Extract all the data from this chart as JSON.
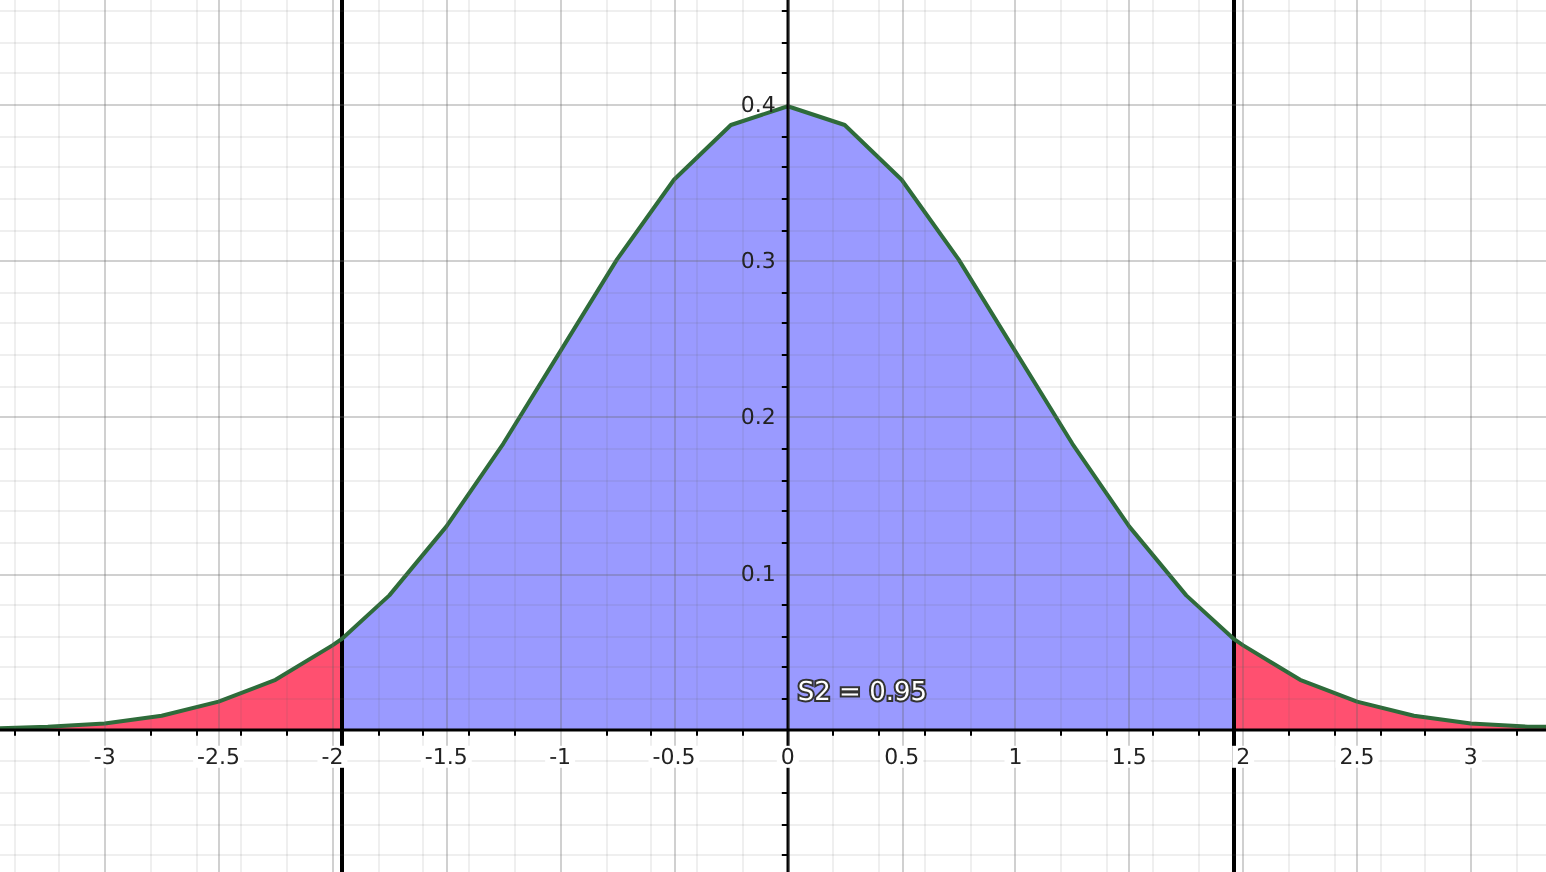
{
  "chart_data": {
    "type": "area",
    "xlim": [
      -3.46,
      3.33
    ],
    "ylim": [
      -0.091,
      0.467
    ],
    "xticks": [
      -3,
      -2.5,
      -2,
      -1.5,
      -1,
      -0.5,
      0,
      0.5,
      1,
      1.5,
      2,
      2.5,
      3
    ],
    "yticks": [
      0.1,
      0.2,
      0.3,
      0.4
    ],
    "grid": true,
    "series": [
      {
        "color": "#ff5070",
        "x": [
          -3.46,
          -3.25,
          -3,
          -2.75,
          -2.5,
          -2.25,
          -2,
          -1.96
        ],
        "values": [
          0.001,
          0.002,
          0.004,
          0.009,
          0.018,
          0.032,
          0.054,
          0.058
        ]
      },
      {
        "color": "#9a9aff",
        "x": [
          -1.96,
          -1.75,
          -1.5,
          -1.25,
          -1,
          -0.75,
          -0.5,
          -0.25,
          0,
          0.25,
          0.5,
          0.75,
          1,
          1.25,
          1.5,
          1.75,
          1.96
        ],
        "values": [
          0.058,
          0.086,
          0.13,
          0.183,
          0.242,
          0.301,
          0.352,
          0.387,
          0.399,
          0.387,
          0.352,
          0.301,
          0.242,
          0.183,
          0.13,
          0.086,
          0.058
        ]
      },
      {
        "color": "#ff5070",
        "x": [
          1.96,
          2,
          2.25,
          2.5,
          2.75,
          3,
          3.25,
          3.33
        ],
        "values": [
          0.058,
          0.054,
          0.032,
          0.018,
          0.009,
          0.004,
          0.002,
          0.002
        ]
      },
      {
        "type": "line",
        "color": "#2e6b3a",
        "x": [
          -3.46,
          -3.25,
          -3,
          -2.75,
          -2.5,
          -2.25,
          -2,
          -1.96,
          -1.75,
          -1.5,
          -1.25,
          -1,
          -0.75,
          -0.5,
          -0.25,
          0,
          0.25,
          0.5,
          0.75,
          1,
          1.25,
          1.5,
          1.75,
          1.96,
          2,
          2.25,
          2.5,
          2.75,
          3,
          3.25,
          3.33
        ],
        "values": [
          0.001,
          0.002,
          0.004,
          0.009,
          0.018,
          0.032,
          0.054,
          0.058,
          0.086,
          0.13,
          0.183,
          0.242,
          0.301,
          0.352,
          0.387,
          0.399,
          0.387,
          0.352,
          0.301,
          0.242,
          0.183,
          0.13,
          0.086,
          0.058,
          0.054,
          0.032,
          0.018,
          0.009,
          0.004,
          0.002,
          0.002
        ]
      }
    ],
    "ref_lines": [
      {
        "axis": "x",
        "value": -1.96,
        "color": "#000000"
      },
      {
        "axis": "x",
        "value": 1.96,
        "color": "#000000"
      }
    ],
    "annotations": [
      "S2 = 0.95"
    ]
  }
}
